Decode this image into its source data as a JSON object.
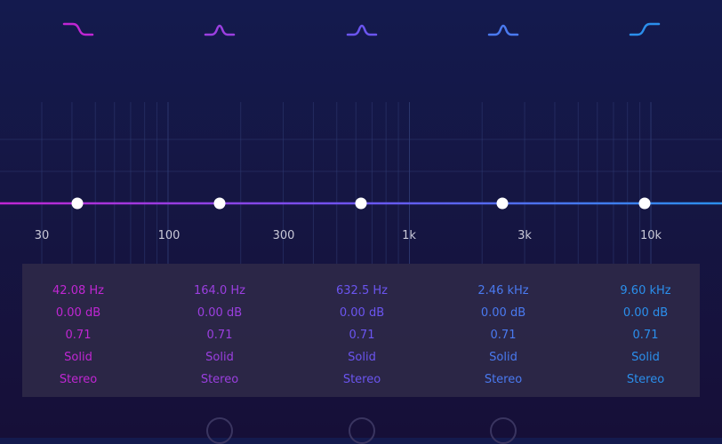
{
  "colors": {
    "band1": "#c026d3",
    "band2": "#9b3fe0",
    "band3": "#6b55f0",
    "band4": "#4a7af0",
    "band5": "#2b8fec",
    "grid": "#2f3a72",
    "node": "#ffffff"
  },
  "filter_icons": [
    {
      "name": "low-cut-icon"
    },
    {
      "name": "bell-icon"
    },
    {
      "name": "bell-icon"
    },
    {
      "name": "bell-icon"
    },
    {
      "name": "high-shelf-icon"
    }
  ],
  "freq_axis": [
    "30",
    "100",
    "300",
    "1k",
    "3k",
    "10k"
  ],
  "bands": [
    {
      "freq": "42.08 Hz",
      "gain": "0.00 dB",
      "q": "0.71",
      "shape": "Solid",
      "mode": "Stereo"
    },
    {
      "freq": "164.0 Hz",
      "gain": "0.00 dB",
      "q": "0.71",
      "shape": "Solid",
      "mode": "Stereo"
    },
    {
      "freq": "632.5 Hz",
      "gain": "0.00 dB",
      "q": "0.71",
      "shape": "Solid",
      "mode": "Stereo"
    },
    {
      "freq": "2.46 kHz",
      "gain": "0.00 dB",
      "q": "0.71",
      "shape": "Solid",
      "mode": "Stereo"
    },
    {
      "freq": "9.60 kHz",
      "gain": "0.00 dB",
      "q": "0.71",
      "shape": "Solid",
      "mode": "Stereo"
    }
  ]
}
